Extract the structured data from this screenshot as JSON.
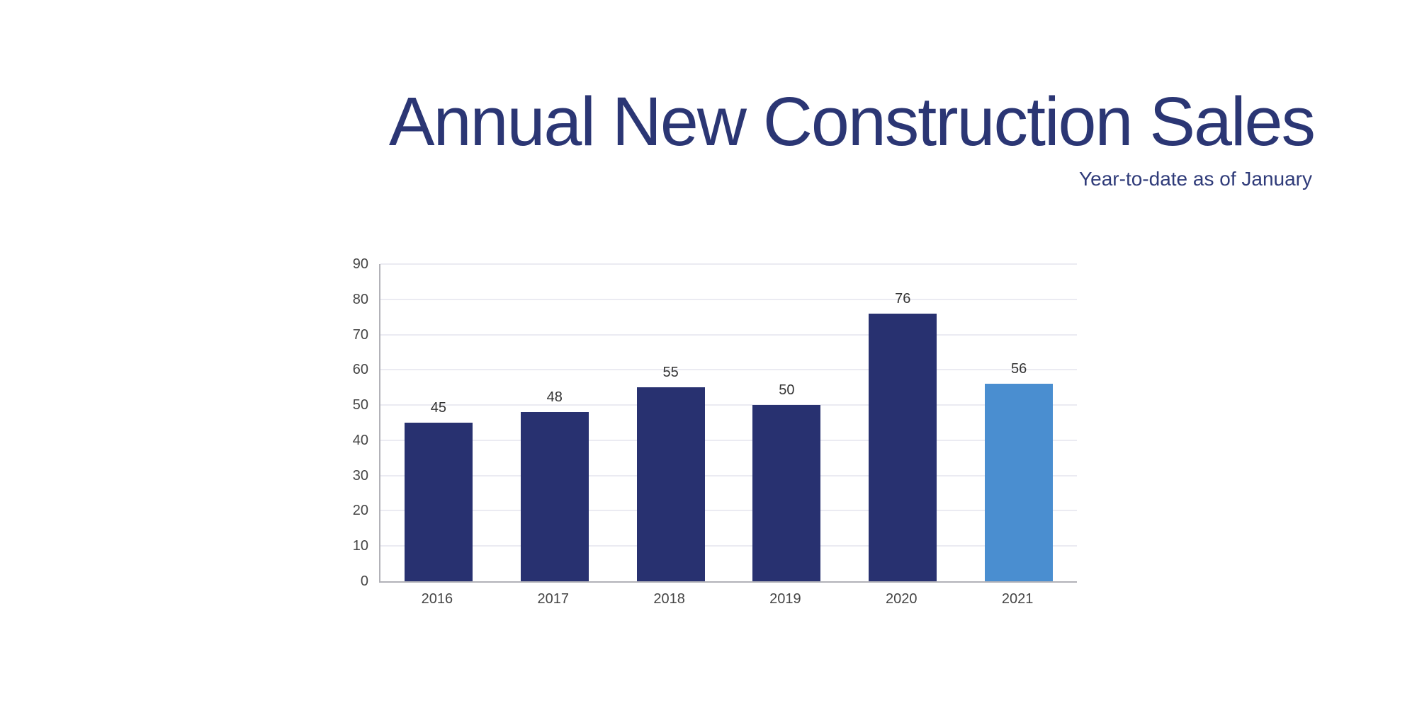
{
  "header": {
    "title": "Annual New Construction Sales",
    "subtitle": "Year-to-date as of January"
  },
  "colors": {
    "title_text": "#2b3674",
    "subtitle_text": "#2f3b79",
    "bar_primary": "#283170",
    "bar_highlight": "#4a8ed0",
    "gridline": "#ebebf2",
    "axis_line": "#b2b2b8",
    "tick_text": "#454545",
    "value_label_text": "#333333",
    "background": "#ffffff"
  },
  "chart_data": {
    "type": "bar",
    "title": "Annual New Construction Sales",
    "subtitle": "Year-to-date as of January",
    "categories": [
      "2016",
      "2017",
      "2018",
      "2019",
      "2020",
      "2021"
    ],
    "values": [
      45,
      48,
      55,
      50,
      76,
      56
    ],
    "bar_colors": [
      "#283170",
      "#283170",
      "#283170",
      "#283170",
      "#283170",
      "#4a8ed0"
    ],
    "highlighted_category": "2021",
    "data_labels": [
      "45",
      "48",
      "55",
      "50",
      "76",
      "56"
    ],
    "xlabel": "",
    "ylabel": "",
    "ylim": [
      0,
      90
    ],
    "y_ticks": [
      0,
      10,
      20,
      30,
      40,
      50,
      60,
      70,
      80,
      90
    ],
    "grid": "horizontal",
    "legend": "none"
  }
}
